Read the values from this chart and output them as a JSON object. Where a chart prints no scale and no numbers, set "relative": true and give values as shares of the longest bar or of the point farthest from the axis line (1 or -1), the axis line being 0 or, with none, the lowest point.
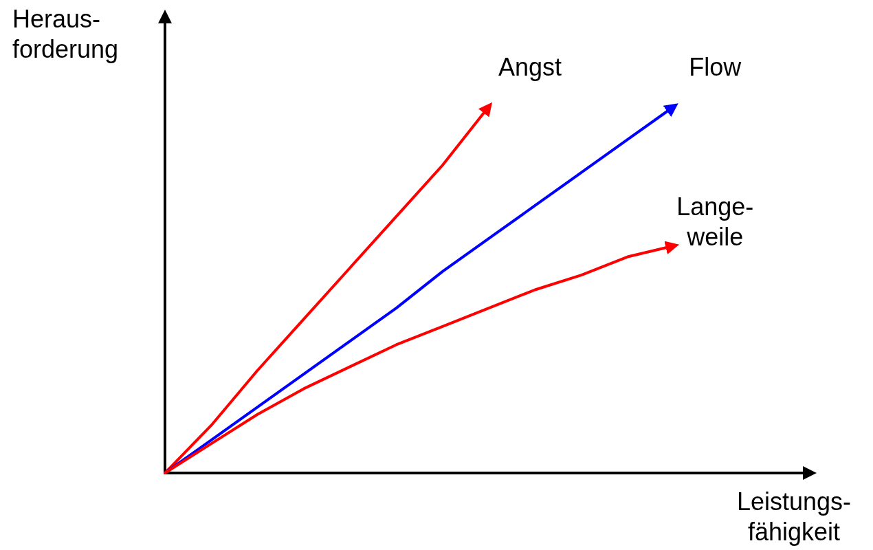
{
  "chart_data": {
    "type": "line",
    "relative": true,
    "xlabel": "Leistungs-\nfähigkeit",
    "ylabel": "Heraus-\nforderung",
    "categories": [
      null,
      null,
      null,
      null,
      null,
      null,
      null,
      null,
      null,
      null,
      null,
      null,
      null,
      null
    ],
    "series": [
      {
        "name": "Angst",
        "color": "#ff0000",
        "values": [
          0,
          0.13,
          0.28,
          0.42,
          0.56,
          0.7,
          0.84,
          1,
          null,
          null,
          null,
          null,
          null,
          null
        ]
      },
      {
        "name": "Flow",
        "color": "#0000ff",
        "values": [
          0,
          0.09,
          0.18,
          0.27,
          0.36,
          0.45,
          0.55,
          0.64,
          0.73,
          0.82,
          0.91,
          1,
          null,
          null
        ]
      },
      {
        "name": "Lange-\nweile",
        "color": "#ff0000",
        "values": [
          0,
          0.08,
          0.16,
          0.23,
          0.29,
          0.35,
          0.4,
          0.45,
          0.5,
          0.54,
          0.59,
          0.62,
          null,
          null
        ]
      }
    ]
  }
}
